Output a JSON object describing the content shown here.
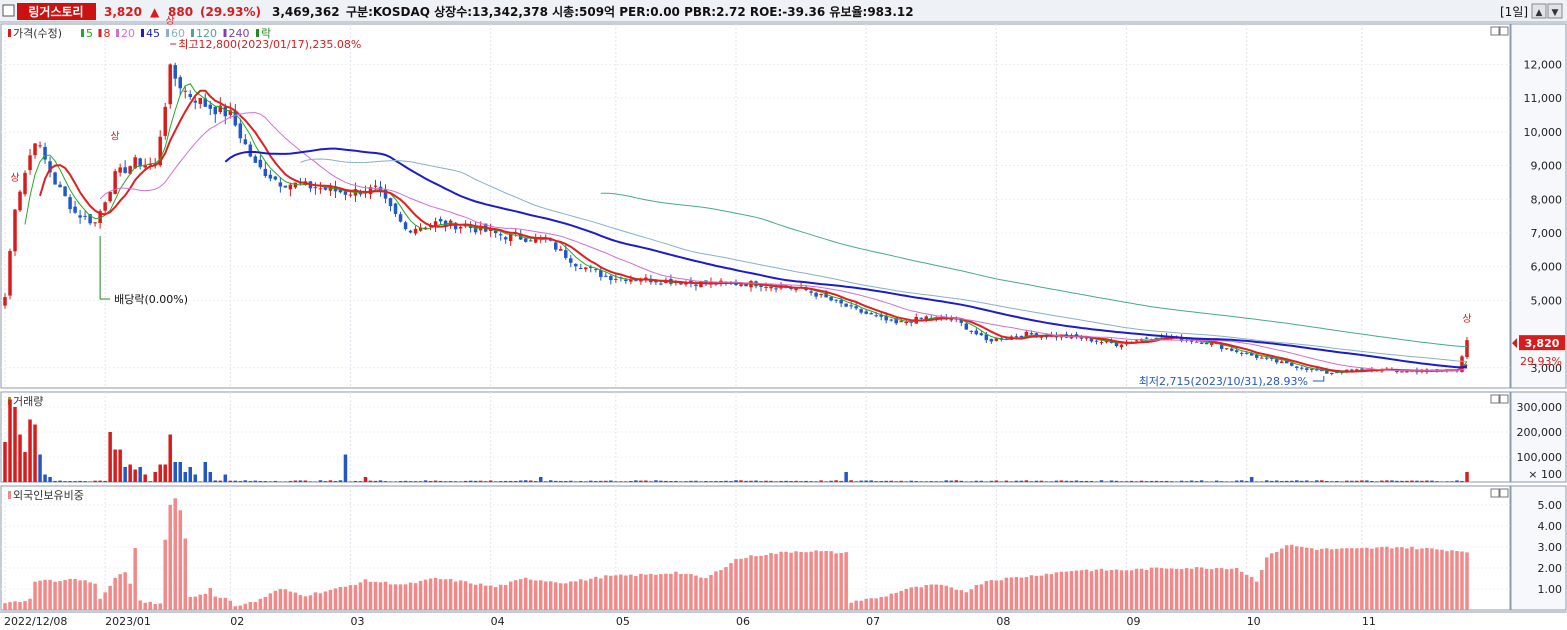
{
  "header": {
    "name": "링거스토리",
    "price": "3,820",
    "change_arrow": "▲",
    "change": "880",
    "change_pct": "(29.93%)",
    "volume": "3,469,362",
    "info": "구분:KOSDAQ 상장수:13,342,378 시총:509억 PER:0.00 PBR:2.72 ROE:-39.36 유보율:983.12",
    "period": "[1일]",
    "colors": {
      "up": "#d81c1c",
      "down": "#2257c8",
      "brand_bg": "#cc1111"
    }
  },
  "chart_data": [
    {
      "type": "candlestick",
      "title": "가격(수정)",
      "legend": [
        {
          "name": "가격(수정)",
          "color": "#d81c1c"
        },
        {
          "name": "5",
          "color": "#22aa22"
        },
        {
          "name": "8",
          "color": "#e02020"
        },
        {
          "name": "20",
          "color": "#d070d0"
        },
        {
          "name": "45",
          "color": "#1c1ccc"
        },
        {
          "name": "60",
          "color": "#8ab0c8"
        },
        {
          "name": "120",
          "color": "#4aa890"
        },
        {
          "name": "240",
          "color": "#8040b0"
        },
        {
          "name": "락",
          "color": "#228822"
        }
      ],
      "y_ticks": [
        "12,000",
        "11,000",
        "10,000",
        "9,000",
        "8,000",
        "7,000",
        "6,000",
        "5,000",
        "3,000"
      ],
      "y_tick_values": [
        12000,
        11000,
        10000,
        9000,
        8000,
        7000,
        6000,
        5000,
        3000
      ],
      "ylim": [
        2400,
        13200
      ],
      "current_price_label": "3,820",
      "current_pct_label": "29.93%",
      "current_price": 3820,
      "annotations": {
        "high": "최고12,800(2023/01/17),235.08%",
        "low": "최저2,715(2023/10/31),28.93%",
        "dividend": "배당락(0.00%)",
        "limit_up": "상"
      },
      "close_keypoints": [
        {
          "i": 0,
          "v": 5100
        },
        {
          "i": 2,
          "v": 7800
        },
        {
          "i": 6,
          "v": 9800
        },
        {
          "i": 10,
          "v": 8500
        },
        {
          "i": 14,
          "v": 7600
        },
        {
          "i": 18,
          "v": 7300
        },
        {
          "i": 22,
          "v": 8700
        },
        {
          "i": 26,
          "v": 9100
        },
        {
          "i": 30,
          "v": 9000
        },
        {
          "i": 33,
          "v": 11800
        },
        {
          "i": 36,
          "v": 11200
        },
        {
          "i": 40,
          "v": 10800
        },
        {
          "i": 45,
          "v": 10500
        },
        {
          "i": 50,
          "v": 9000
        },
        {
          "i": 55,
          "v": 8500
        },
        {
          "i": 60,
          "v": 8400
        },
        {
          "i": 68,
          "v": 8200
        },
        {
          "i": 74,
          "v": 8300
        },
        {
          "i": 80,
          "v": 7100
        },
        {
          "i": 86,
          "v": 7300
        },
        {
          "i": 92,
          "v": 7200
        },
        {
          "i": 100,
          "v": 6900
        },
        {
          "i": 108,
          "v": 6800
        },
        {
          "i": 114,
          "v": 6100
        },
        {
          "i": 120,
          "v": 5700
        },
        {
          "i": 130,
          "v": 5600
        },
        {
          "i": 140,
          "v": 5500
        },
        {
          "i": 150,
          "v": 5500
        },
        {
          "i": 160,
          "v": 5300
        },
        {
          "i": 170,
          "v": 4700
        },
        {
          "i": 178,
          "v": 4300
        },
        {
          "i": 184,
          "v": 4500
        },
        {
          "i": 190,
          "v": 4400
        },
        {
          "i": 196,
          "v": 3800
        },
        {
          "i": 204,
          "v": 4000
        },
        {
          "i": 214,
          "v": 3900
        },
        {
          "i": 222,
          "v": 3700
        },
        {
          "i": 230,
          "v": 3950
        },
        {
          "i": 240,
          "v": 3750
        },
        {
          "i": 248,
          "v": 3400
        },
        {
          "i": 256,
          "v": 3100
        },
        {
          "i": 264,
          "v": 2850
        },
        {
          "i": 272,
          "v": 2950
        },
        {
          "i": 280,
          "v": 2900
        },
        {
          "i": 290,
          "v": 2940
        },
        {
          "i": 292,
          "v": 3820
        }
      ],
      "x_axis": {
        "labels": [
          "2022/12/08",
          "2023/01",
          "02",
          "03",
          "04",
          "05",
          "06",
          "07",
          "08",
          "09",
          "10",
          "11"
        ],
        "label_index": [
          0,
          20,
          45,
          69,
          97,
          122,
          146,
          172,
          198,
          224,
          248,
          271
        ],
        "count": 293
      }
    },
    {
      "type": "bar",
      "title": "거래량",
      "y_ticks": [
        "300,000",
        "200,000",
        "100,000",
        "× 100"
      ],
      "y_tick_values": [
        300000,
        200000,
        100000
      ],
      "ylim": [
        0,
        360000
      ],
      "spikes": [
        {
          "i": 0,
          "v": 160000
        },
        {
          "i": 1,
          "v": 330000
        },
        {
          "i": 2,
          "v": 300000
        },
        {
          "i": 3,
          "v": 190000
        },
        {
          "i": 4,
          "v": 120000
        },
        {
          "i": 5,
          "v": 250000
        },
        {
          "i": 6,
          "v": 230000
        },
        {
          "i": 7,
          "v": 110000
        },
        {
          "i": 8,
          "v": 30000
        },
        {
          "i": 9,
          "v": 20000
        },
        {
          "i": 21,
          "v": 200000
        },
        {
          "i": 22,
          "v": 130000
        },
        {
          "i": 23,
          "v": 130000
        },
        {
          "i": 24,
          "v": 60000
        },
        {
          "i": 25,
          "v": 70000
        },
        {
          "i": 26,
          "v": 50000
        },
        {
          "i": 27,
          "v": 60000
        },
        {
          "i": 28,
          "v": 30000
        },
        {
          "i": 30,
          "v": 40000
        },
        {
          "i": 31,
          "v": 70000
        },
        {
          "i": 32,
          "v": 70000
        },
        {
          "i": 33,
          "v": 190000
        },
        {
          "i": 34,
          "v": 80000
        },
        {
          "i": 35,
          "v": 80000
        },
        {
          "i": 36,
          "v": 40000
        },
        {
          "i": 37,
          "v": 60000
        },
        {
          "i": 38,
          "v": 30000
        },
        {
          "i": 40,
          "v": 80000
        },
        {
          "i": 41,
          "v": 40000
        },
        {
          "i": 44,
          "v": 30000
        },
        {
          "i": 68,
          "v": 110000
        },
        {
          "i": 72,
          "v": 20000
        },
        {
          "i": 107,
          "v": 20000
        },
        {
          "i": 168,
          "v": 40000
        },
        {
          "i": 249,
          "v": 20000
        },
        {
          "i": 292,
          "v": 40000
        }
      ]
    },
    {
      "type": "bar",
      "title": "외국인보유비중",
      "y_ticks": [
        "5.00",
        "4.00",
        "3.00",
        "2.00",
        "1.00"
      ],
      "y_tick_values": [
        5,
        4,
        3,
        2,
        1
      ],
      "ylim": [
        0,
        5.9
      ],
      "keypoints": [
        {
          "i": 0,
          "v": 0.3
        },
        {
          "i": 5,
          "v": 0.5
        },
        {
          "i": 6,
          "v": 1.4
        },
        {
          "i": 12,
          "v": 1.4
        },
        {
          "i": 13,
          "v": 1.5
        },
        {
          "i": 18,
          "v": 1.3
        },
        {
          "i": 19,
          "v": 0.5
        },
        {
          "i": 22,
          "v": 1.5
        },
        {
          "i": 24,
          "v": 1.8
        },
        {
          "i": 25,
          "v": 1.3
        },
        {
          "i": 26,
          "v": 2.9
        },
        {
          "i": 27,
          "v": 0.4
        },
        {
          "i": 31,
          "v": 0.3
        },
        {
          "i": 32,
          "v": 3.4
        },
        {
          "i": 33,
          "v": 5.0
        },
        {
          "i": 34,
          "v": 5.3
        },
        {
          "i": 35,
          "v": 4.8
        },
        {
          "i": 36,
          "v": 3.4
        },
        {
          "i": 37,
          "v": 0.6
        },
        {
          "i": 40,
          "v": 0.8
        },
        {
          "i": 41,
          "v": 1.1
        },
        {
          "i": 42,
          "v": 0.6
        },
        {
          "i": 45,
          "v": 0.5
        },
        {
          "i": 46,
          "v": 0.2
        },
        {
          "i": 50,
          "v": 0.4
        },
        {
          "i": 55,
          "v": 1.0
        },
        {
          "i": 60,
          "v": 0.7
        },
        {
          "i": 68,
          "v": 1.1
        },
        {
          "i": 72,
          "v": 1.4
        },
        {
          "i": 80,
          "v": 1.2
        },
        {
          "i": 86,
          "v": 1.5
        },
        {
          "i": 90,
          "v": 1.4
        },
        {
          "i": 98,
          "v": 1.1
        },
        {
          "i": 104,
          "v": 1.5
        },
        {
          "i": 112,
          "v": 1.3
        },
        {
          "i": 120,
          "v": 1.6
        },
        {
          "i": 130,
          "v": 1.7
        },
        {
          "i": 134,
          "v": 1.8
        },
        {
          "i": 140,
          "v": 1.5
        },
        {
          "i": 146,
          "v": 2.4
        },
        {
          "i": 150,
          "v": 2.6
        },
        {
          "i": 158,
          "v": 2.8
        },
        {
          "i": 162,
          "v": 2.8
        },
        {
          "i": 168,
          "v": 2.7
        },
        {
          "i": 169,
          "v": 0.4
        },
        {
          "i": 175,
          "v": 0.6
        },
        {
          "i": 180,
          "v": 1.0
        },
        {
          "i": 186,
          "v": 1.2
        },
        {
          "i": 192,
          "v": 0.9
        },
        {
          "i": 196,
          "v": 1.4
        },
        {
          "i": 204,
          "v": 1.6
        },
        {
          "i": 214,
          "v": 1.9
        },
        {
          "i": 224,
          "v": 1.9
        },
        {
          "i": 232,
          "v": 2.0
        },
        {
          "i": 240,
          "v": 2.0
        },
        {
          "i": 246,
          "v": 2.0
        },
        {
          "i": 250,
          "v": 1.4
        },
        {
          "i": 252,
          "v": 2.5
        },
        {
          "i": 256,
          "v": 3.1
        },
        {
          "i": 262,
          "v": 2.9
        },
        {
          "i": 270,
          "v": 2.9
        },
        {
          "i": 278,
          "v": 3.0
        },
        {
          "i": 292,
          "v": 2.8
        }
      ]
    }
  ]
}
